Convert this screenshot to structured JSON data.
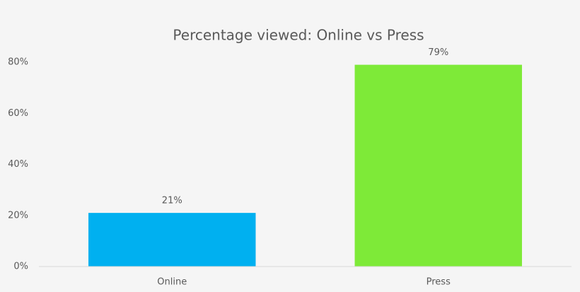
{
  "chart_data": {
    "type": "bar",
    "title": "Percentage viewed: Online vs Press",
    "categories": [
      "Online",
      "Press"
    ],
    "values": [
      21,
      79
    ],
    "value_labels": [
      "21%",
      "79%"
    ],
    "colors": [
      "#00b0f0",
      "#7eea38"
    ],
    "ylim": [
      0,
      80
    ],
    "yticks": [
      {
        "value": 0,
        "label": "0%"
      },
      {
        "value": 20,
        "label": "20%"
      },
      {
        "value": 40,
        "label": "40%"
      },
      {
        "value": 60,
        "label": "60%"
      },
      {
        "value": 80,
        "label": "80%"
      }
    ],
    "grid": false
  }
}
